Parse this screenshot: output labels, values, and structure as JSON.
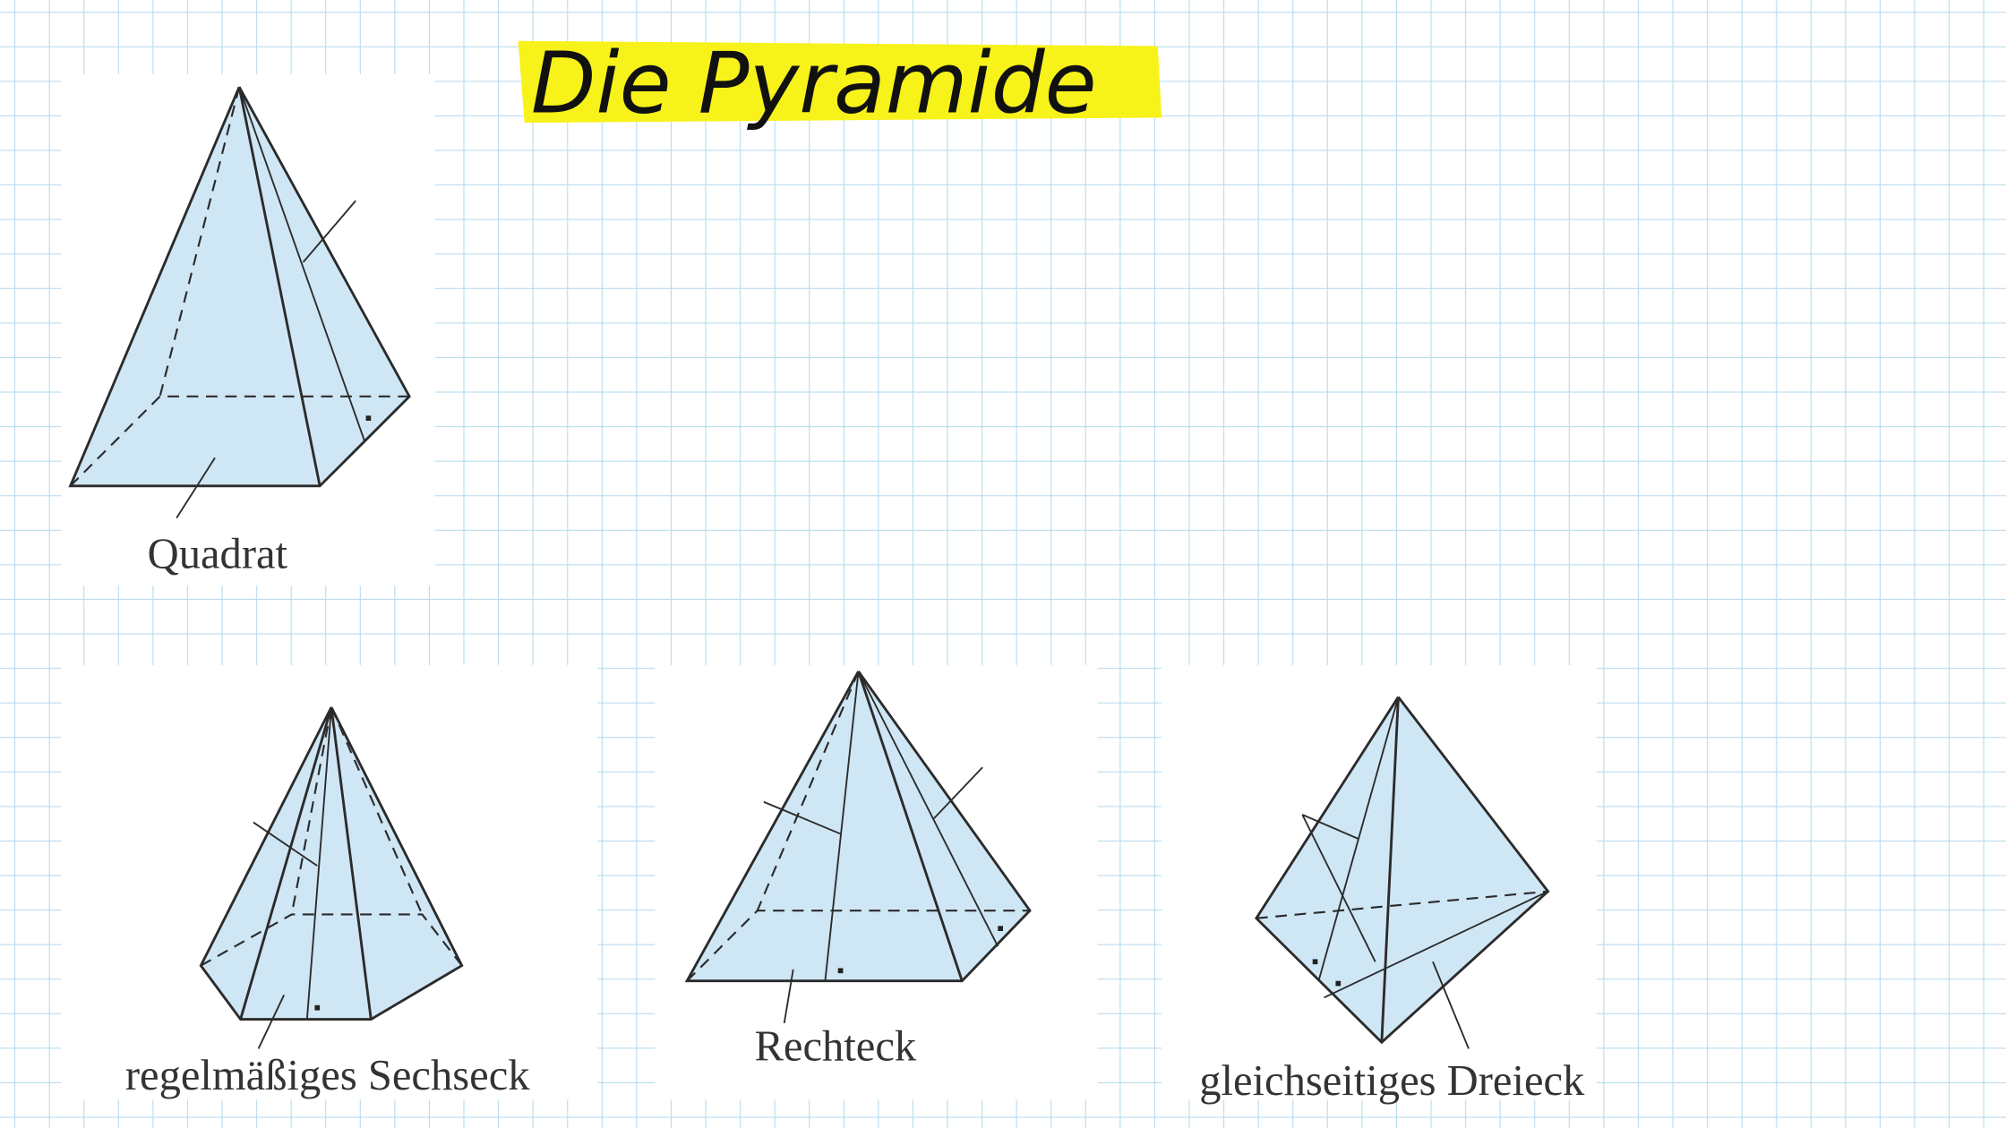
{
  "title": "Die Pyramide",
  "figures": [
    {
      "label": "Quadrat"
    },
    {
      "label": "regelmäßiges Sechseck"
    },
    {
      "label": "Rechteck"
    },
    {
      "label": "gleichseitiges Dreieck"
    }
  ]
}
